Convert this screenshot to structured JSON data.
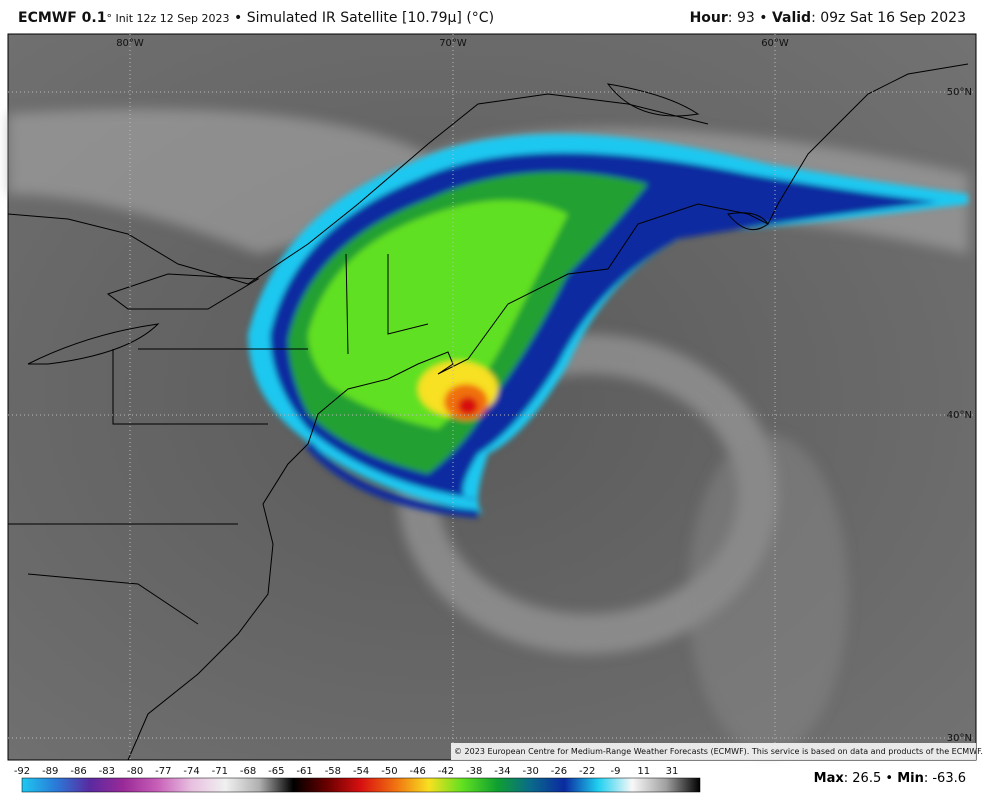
{
  "header": {
    "model": "ECMWF 0.1",
    "init": "° Init 12z 12 Sep 2023",
    "separator": "•",
    "product": "Simulated IR Satellite [10.79μ] (°C)",
    "hour_label": "Hour",
    "hour": ": 93",
    "valid_label": "Valid",
    "valid": ": 09z Sat 16 Sep 2023"
  },
  "map": {
    "lon_labels": [
      "80°W",
      "70°W",
      "60°W"
    ],
    "lat_labels": [
      "50°N",
      "40°N",
      "30°N"
    ],
    "copyright": "© 2023 European Centre for Medium-Range Weather Forecasts (ECMWF). This service is based on data and products of the ECMWF."
  },
  "colorbar": {
    "ticks": [
      "-92",
      "-89",
      "-86",
      "-83",
      "-80",
      "-77",
      "-74",
      "-71",
      "-68",
      "-65",
      "-61",
      "-58",
      "-54",
      "-50",
      "-46",
      "-42",
      "-38",
      "-34",
      "-30",
      "-26",
      "-22",
      "-9",
      "11",
      "31"
    ],
    "colors": [
      "#1ec8f0",
      "#2a7ad8",
      "#5a2aa0",
      "#9a2a98",
      "#c860b8",
      "#e8c0e0",
      "#f0f0f0",
      "#b0b0b0",
      "#000000",
      "#6a0000",
      "#d81010",
      "#f07010",
      "#f8e020",
      "#60e020",
      "#10a030",
      "#0a6a8a",
      "#0a2aa0",
      "#20d0f0",
      "#f8f8f8",
      "#a0a0a0",
      "#000000"
    ]
  },
  "stats": {
    "max_label": "Max",
    "max": ": 26.5",
    "separator": "•",
    "min_label": "Min",
    "min": ": -63.6"
  }
}
